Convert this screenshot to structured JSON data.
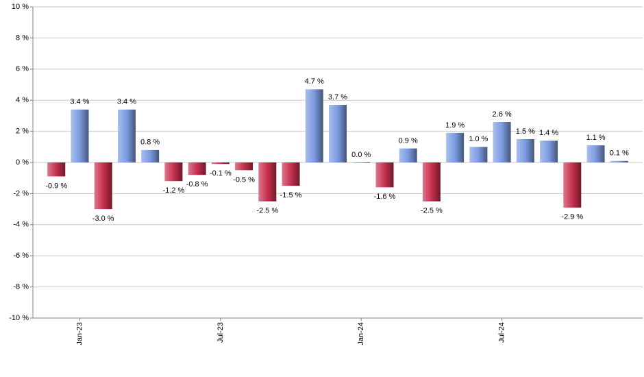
{
  "chart_data": {
    "type": "bar",
    "categories": [
      null,
      "Jan-23",
      null,
      null,
      null,
      null,
      null,
      "Jul-23",
      null,
      null,
      null,
      null,
      null,
      "Jan-24",
      null,
      null,
      null,
      null,
      null,
      "Jul-24",
      null,
      null,
      null,
      null,
      null
    ],
    "values": [
      -0.9,
      3.4,
      -3.0,
      3.4,
      0.8,
      -1.2,
      -0.8,
      -0.1,
      -0.5,
      -2.5,
      -1.5,
      4.7,
      3.7,
      0.0,
      -1.6,
      0.9,
      -2.5,
      1.9,
      1.0,
      2.6,
      1.5,
      1.4,
      -2.9,
      1.1,
      0.1
    ],
    "value_labels": [
      "-0.9 %",
      "3.4 %",
      "-3.0 %",
      "3.4 %",
      "0.8 %",
      "-1.2 %",
      "-0.8 %",
      "-0.1 %",
      "-0.5 %",
      "-2.5 %",
      "-1.5 %",
      "4.7 %",
      "3.7 %",
      "0.0 %",
      "-1.6 %",
      "0.9 %",
      "-2.5 %",
      "1.9 %",
      "1.0 %",
      "2.6 %",
      "1.5 %",
      "1.4 %",
      "-2.9 %",
      "1.1 %",
      "0.1 %"
    ],
    "positive_color": "#7b9be0",
    "negative_color": "#c8304f",
    "ylim": [
      -10,
      10
    ],
    "yticks": [
      {
        "value": -10,
        "label": "-10 %"
      },
      {
        "value": -8,
        "label": "-8 %"
      },
      {
        "value": -6,
        "label": "-6 %"
      },
      {
        "value": -4,
        "label": "-4 %"
      },
      {
        "value": -2,
        "label": "-2 %"
      },
      {
        "value": 0,
        "label": "0 %"
      },
      {
        "value": 2,
        "label": "2 %"
      },
      {
        "value": 4,
        "label": "4 %"
      },
      {
        "value": 6,
        "label": "6 %"
      },
      {
        "value": 8,
        "label": "8 %"
      },
      {
        "value": 10,
        "label": "10 %"
      }
    ],
    "grid": true
  }
}
